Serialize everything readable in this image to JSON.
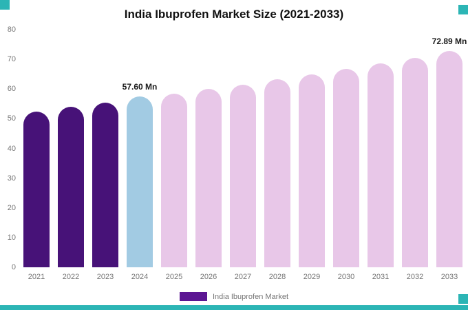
{
  "title": "India Ibuprofen Market Size (2021-2033)",
  "legend": {
    "label": "India Ibuprofen Market"
  },
  "colors": {
    "historical": "#471278",
    "base_year": "#a2cbe3",
    "forecast": "#e8c7e8",
    "legend_swatch": "#5c1693",
    "accent_teal": "#2cb5b5"
  },
  "chart_data": {
    "type": "bar",
    "title": "India Ibuprofen Market Size (2021-2033)",
    "categories": [
      "2021",
      "2022",
      "2023",
      "2024",
      "2025",
      "2026",
      "2027",
      "2028",
      "2029",
      "2030",
      "2031",
      "2032",
      "2033"
    ],
    "values": [
      52.5,
      54.0,
      55.5,
      57.6,
      58.5,
      60.0,
      61.5,
      63.3,
      65.0,
      66.8,
      68.7,
      70.5,
      72.89
    ],
    "bar_roles": [
      "historical",
      "historical",
      "historical",
      "base_year",
      "forecast",
      "forecast",
      "forecast",
      "forecast",
      "forecast",
      "forecast",
      "forecast",
      "forecast",
      "forecast"
    ],
    "annotations": [
      {
        "category": "2024",
        "text": "57.60 Mn"
      },
      {
        "category": "2033",
        "text": "72.89 Mn"
      }
    ],
    "xlabel": "",
    "ylabel": "",
    "ylim": [
      0,
      80
    ],
    "yticks": [
      0,
      10,
      20,
      30,
      40,
      50,
      60,
      70,
      80
    ],
    "grid": false,
    "legend_position": "bottom"
  }
}
